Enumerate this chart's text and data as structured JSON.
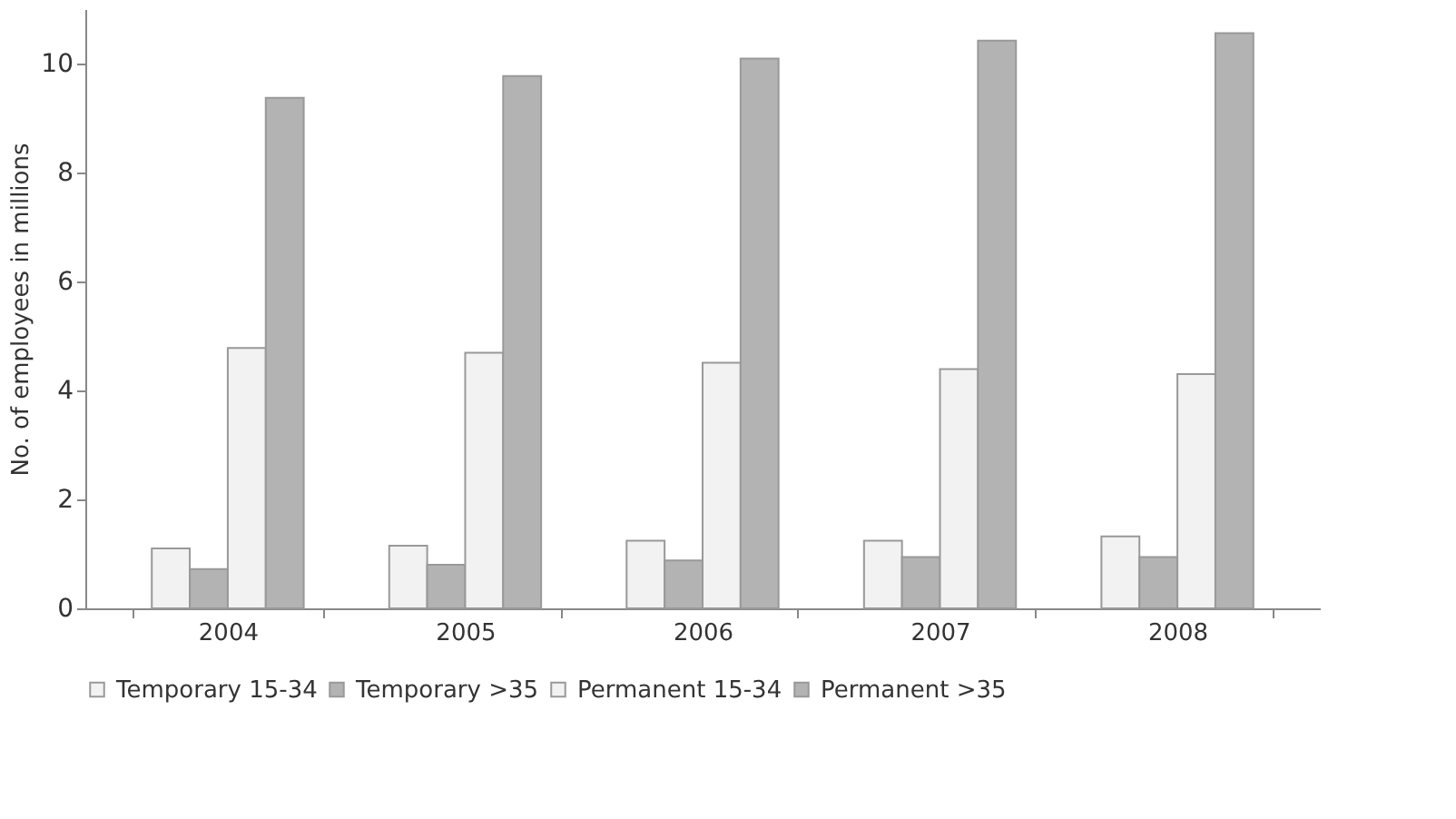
{
  "chart_data": {
    "type": "bar",
    "ylabel": "No. of employees in millions",
    "categories": [
      "2004",
      "2005",
      "2006",
      "2007",
      "2008"
    ],
    "series": [
      {
        "name": "Temporary 15-34",
        "color": "#f2f2f2",
        "values": [
          1.1,
          1.15,
          1.24,
          1.24,
          1.32
        ]
      },
      {
        "name": "Temporary >35",
        "color": "#b3b3b3",
        "values": [
          0.72,
          0.8,
          0.88,
          0.94,
          0.94
        ]
      },
      {
        "name": "Permanent 15-34",
        "color": "#f2f2f2",
        "values": [
          4.78,
          4.69,
          4.51,
          4.39,
          4.3
        ]
      },
      {
        "name": "Permanent >35",
        "color": "#b3b3b3",
        "values": [
          9.37,
          9.77,
          10.09,
          10.42,
          10.56
        ]
      }
    ],
    "ylim": [
      0,
      11
    ],
    "yticks": [
      0,
      2,
      4,
      6,
      8,
      10
    ],
    "grid": false,
    "legend": "bottom"
  }
}
